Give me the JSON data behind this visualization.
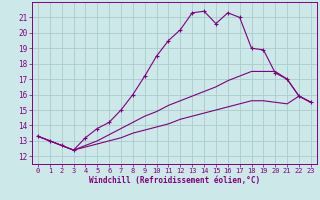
{
  "xlabel": "Windchill (Refroidissement éolien,°C)",
  "background_color": "#cce8e8",
  "grid_color": "#aacccc",
  "line_color": "#800080",
  "xlim": [
    -0.5,
    23.5
  ],
  "ylim": [
    11.5,
    22.0
  ],
  "yticks": [
    12,
    13,
    14,
    15,
    16,
    17,
    18,
    19,
    20,
    21
  ],
  "xticks": [
    0,
    1,
    2,
    3,
    4,
    5,
    6,
    7,
    8,
    9,
    10,
    11,
    12,
    13,
    14,
    15,
    16,
    17,
    18,
    19,
    20,
    21,
    22,
    23
  ],
  "series": [
    {
      "x": [
        0,
        1,
        2,
        3,
        4,
        5,
        6,
        7,
        8,
        9,
        10,
        11,
        12,
        13,
        14,
        15,
        16,
        17,
        18,
        19,
        20,
        21,
        22,
        23
      ],
      "y": [
        13.3,
        13.0,
        12.7,
        12.4,
        13.2,
        13.8,
        14.2,
        15.0,
        16.0,
        17.2,
        18.5,
        19.5,
        20.2,
        21.3,
        21.4,
        20.6,
        21.3,
        21.0,
        19.0,
        18.9,
        17.4,
        17.0,
        15.9,
        15.5
      ],
      "marker": "+"
    },
    {
      "x": [
        0,
        2,
        3,
        4,
        5,
        6,
        7,
        8,
        9,
        10,
        11,
        12,
        13,
        14,
        15,
        16,
        17,
        18,
        19,
        20,
        21,
        22,
        23
      ],
      "y": [
        13.3,
        12.7,
        12.4,
        12.7,
        13.0,
        13.4,
        13.8,
        14.2,
        14.6,
        14.9,
        15.3,
        15.6,
        15.9,
        16.2,
        16.5,
        16.9,
        17.2,
        17.5,
        17.5,
        17.5,
        17.0,
        15.9,
        15.5
      ],
      "marker": null
    },
    {
      "x": [
        0,
        2,
        3,
        4,
        5,
        6,
        7,
        8,
        9,
        10,
        11,
        12,
        13,
        14,
        15,
        16,
        17,
        18,
        19,
        20,
        21,
        22,
        23
      ],
      "y": [
        13.3,
        12.7,
        12.4,
        12.6,
        12.8,
        13.0,
        13.2,
        13.5,
        13.7,
        13.9,
        14.1,
        14.4,
        14.6,
        14.8,
        15.0,
        15.2,
        15.4,
        15.6,
        15.6,
        15.5,
        15.4,
        15.9,
        15.5
      ],
      "marker": null
    }
  ]
}
